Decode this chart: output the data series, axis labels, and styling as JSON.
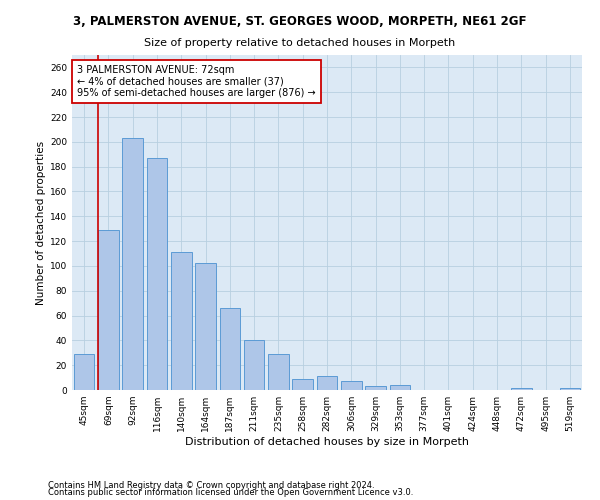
{
  "title": "3, PALMERSTON AVENUE, ST. GEORGES WOOD, MORPETH, NE61 2GF",
  "subtitle": "Size of property relative to detached houses in Morpeth",
  "xlabel": "Distribution of detached houses by size in Morpeth",
  "ylabel": "Number of detached properties",
  "categories": [
    "45sqm",
    "69sqm",
    "92sqm",
    "116sqm",
    "140sqm",
    "164sqm",
    "187sqm",
    "211sqm",
    "235sqm",
    "258sqm",
    "282sqm",
    "306sqm",
    "329sqm",
    "353sqm",
    "377sqm",
    "401sqm",
    "424sqm",
    "448sqm",
    "472sqm",
    "495sqm",
    "519sqm"
  ],
  "values": [
    29,
    129,
    203,
    187,
    111,
    102,
    66,
    40,
    29,
    9,
    11,
    7,
    3,
    4,
    0,
    0,
    0,
    0,
    2,
    0,
    2
  ],
  "bar_color": "#aec6e8",
  "bar_edge_color": "#5b9bd5",
  "vline_color": "#cc0000",
  "vline_x_index": 1,
  "annotation_line1": "3 PALMERSTON AVENUE: 72sqm",
  "annotation_line2": "← 4% of detached houses are smaller (37)",
  "annotation_line3": "95% of semi-detached houses are larger (876) →",
  "annotation_box_facecolor": "#ffffff",
  "annotation_box_edgecolor": "#cc0000",
  "ylim": [
    0,
    270
  ],
  "yticks": [
    0,
    20,
    40,
    60,
    80,
    100,
    120,
    140,
    160,
    180,
    200,
    220,
    240,
    260
  ],
  "footnote1": "Contains HM Land Registry data © Crown copyright and database right 2024.",
  "footnote2": "Contains public sector information licensed under the Open Government Licence v3.0.",
  "bg_color": "#ffffff",
  "plot_bg_color": "#dce9f5",
  "grid_color": "#b8cfe0",
  "title_fontsize": 8.5,
  "subtitle_fontsize": 8,
  "ylabel_fontsize": 7.5,
  "xlabel_fontsize": 8,
  "tick_fontsize": 6.5,
  "annot_fontsize": 7,
  "footnote_fontsize": 6
}
